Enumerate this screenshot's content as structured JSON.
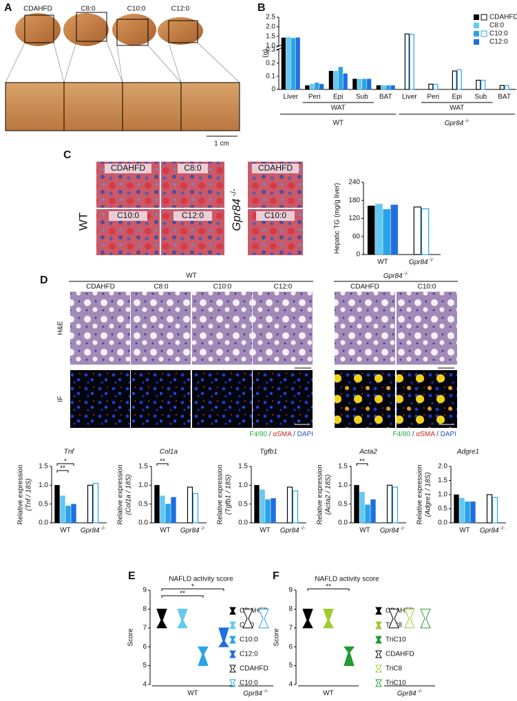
{
  "panel_labels": [
    "A",
    "B",
    "C",
    "D",
    "E",
    "F"
  ],
  "panel_a": {
    "labels": [
      "CDAHFD",
      "C8:0",
      "C10:0",
      "C12:0"
    ],
    "scale_bar": "1 cm"
  },
  "panel_c": {
    "labels": [
      "CDAHFD",
      "C8:0",
      "C10:0",
      "C12:0",
      "CDAHFD",
      "C10:0"
    ],
    "rows": [
      "WT",
      "Gpr84 -/-"
    ]
  },
  "panel_d": {
    "groups": [
      "WT",
      "Gpr84 -/-"
    ],
    "columns": [
      "CDAHFD",
      "C8:0",
      "C10:0",
      "C12:0",
      "CDAHFD",
      "C10:0"
    ],
    "rows": [
      "H&E",
      "IF"
    ],
    "stain_legend": [
      {
        "text": "F4/80",
        "color": "#22aa44"
      },
      {
        "text": " / ",
        "color": "#333333"
      },
      {
        "text": "αSMA",
        "color": "#cc2222"
      },
      {
        "text": " / ",
        "color": "#333333"
      },
      {
        "text": "DAPI",
        "color": "#2255cc"
      }
    ]
  },
  "chart_data": [
    {
      "type": "bar",
      "ylabel": "(g)",
      "legend": "top-right",
      "categories": [
        "Liver",
        "Peri",
        "Epi",
        "Sub",
        "BAT",
        "Liver",
        "Peri",
        "Epi",
        "Sub",
        "BAT"
      ],
      "subgroup_labels": [
        "WAT",
        "WAT"
      ],
      "group_labels": [
        "WT",
        "Gpr84 -/-"
      ],
      "ylim": [
        0,
        2.5
      ],
      "ybreak": [
        0.3,
        1.0
      ],
      "yticks": [
        0,
        0.1,
        0.2,
        0.3,
        {
          "value": 1,
          "label": "1.0"
        },
        1.5,
        {
          "value": 2,
          "label": "2.0"
        },
        2.5
      ],
      "series": [
        {
          "name": "CDAHFD",
          "color": "#000000",
          "values": [
            1.42,
            0.03,
            0.14,
            0.08,
            0.03,
            null,
            null,
            null,
            null,
            null
          ]
        },
        {
          "name": "C8:0",
          "color": "#63c8f2",
          "values": [
            1.45,
            0.04,
            0.14,
            0.08,
            0.03,
            null,
            null,
            null,
            null,
            null
          ]
        },
        {
          "name": "C10:0",
          "color": "#29a3e6",
          "values": [
            1.4,
            0.05,
            0.17,
            0.08,
            0.03,
            null,
            null,
            null,
            null,
            null
          ]
        },
        {
          "name": "C12:0",
          "color": "#1f6fe0",
          "values": [
            1.43,
            0.04,
            0.12,
            0.08,
            0.03,
            null,
            null,
            null,
            null,
            null
          ]
        },
        {
          "color": "#000000",
          "open": true,
          "values": [
            null,
            null,
            null,
            null,
            null,
            1.62,
            0.04,
            0.14,
            0.07,
            0.03
          ]
        },
        {
          "color": "#29a3e6",
          "open": true,
          "values": [
            null,
            null,
            null,
            null,
            null,
            1.6,
            0.04,
            0.15,
            0.07,
            0.03
          ]
        }
      ]
    },
    {
      "type": "bar",
      "ylabel": "Hepatic TG (mg/g liver)",
      "categories": [
        "WT",
        "Gpr84 -/-"
      ],
      "ylim": [
        0,
        240
      ],
      "yticks": [
        0,
        60,
        120,
        180,
        240
      ],
      "series": [
        {
          "color": "#000000",
          "values": [
            162,
            null
          ]
        },
        {
          "color": "#63c8f2",
          "values": [
            168,
            null
          ]
        },
        {
          "color": "#29a3e6",
          "values": [
            150,
            null
          ]
        },
        {
          "color": "#1f6fe0",
          "values": [
            165,
            null
          ]
        },
        {
          "color": "#000000",
          "open": true,
          "values": [
            null,
            158
          ]
        },
        {
          "color": "#29a3e6",
          "open": true,
          "values": [
            null,
            152
          ]
        }
      ]
    },
    {
      "type": "bar",
      "title": "Tnf",
      "ylabel": "Relative expression",
      "ylabel2": "(Tnf / 18S)",
      "categories": [
        "WT",
        "Gpr84 -/-"
      ],
      "ylim": [
        0,
        1.5
      ],
      "yticks": [
        {
          "value": 0,
          "label": "0.0"
        },
        0.5,
        {
          "value": 1,
          "label": "1.0"
        },
        1.5
      ],
      "annotations": [
        "*",
        "**"
      ],
      "series": [
        {
          "color": "#000000",
          "values": [
            1.0,
            null
          ]
        },
        {
          "color": "#63c8f2",
          "values": [
            0.72,
            null
          ]
        },
        {
          "color": "#29a3e6",
          "values": [
            0.45,
            null
          ]
        },
        {
          "color": "#1f6fe0",
          "values": [
            0.5,
            null
          ]
        },
        {
          "color": "#000000",
          "open": true,
          "values": [
            null,
            1.0
          ]
        },
        {
          "color": "#29a3e6",
          "open": true,
          "values": [
            null,
            1.05
          ]
        }
      ]
    },
    {
      "type": "bar",
      "title": "Col1a",
      "ylabel": "Relative expression",
      "ylabel2": "(Col1a / 18S)",
      "categories": [
        "WT",
        "Gpr84 -/-"
      ],
      "ylim": [
        0,
        1.5
      ],
      "yticks": [
        {
          "value": 0,
          "label": "0.0"
        },
        0.5,
        {
          "value": 1,
          "label": "1.0"
        },
        1.5
      ],
      "annotations": [
        "**"
      ],
      "series": [
        {
          "color": "#000000",
          "values": [
            1.0,
            null
          ]
        },
        {
          "color": "#63c8f2",
          "values": [
            0.72,
            null
          ]
        },
        {
          "color": "#29a3e6",
          "values": [
            0.5,
            null
          ]
        },
        {
          "color": "#1f6fe0",
          "values": [
            0.68,
            null
          ]
        },
        {
          "color": "#000000",
          "open": true,
          "values": [
            null,
            0.95
          ]
        },
        {
          "color": "#29a3e6",
          "open": true,
          "values": [
            null,
            0.78
          ]
        }
      ]
    },
    {
      "type": "bar",
      "title": "Tgfb1",
      "ylabel": "Relative expression",
      "ylabel2": "(Tgfb1 / 18S)",
      "categories": [
        "WT",
        "Gpr84 -/-"
      ],
      "ylim": [
        0,
        1.5
      ],
      "yticks": [
        {
          "value": 0,
          "label": "0.0"
        },
        0.5,
        {
          "value": 1,
          "label": "1.0"
        },
        1.5
      ],
      "series": [
        {
          "color": "#000000",
          "values": [
            1.0,
            null
          ]
        },
        {
          "color": "#63c8f2",
          "values": [
            0.88,
            null
          ]
        },
        {
          "color": "#29a3e6",
          "values": [
            0.62,
            null
          ]
        },
        {
          "color": "#1f6fe0",
          "values": [
            0.65,
            null
          ]
        },
        {
          "color": "#000000",
          "open": true,
          "values": [
            null,
            0.95
          ]
        },
        {
          "color": "#29a3e6",
          "open": true,
          "values": [
            null,
            0.85
          ]
        }
      ]
    },
    {
      "type": "bar",
      "title": "Acta2",
      "ylabel": "Relative expression",
      "ylabel2": "(Acta2 / 18S)",
      "categories": [
        "WT",
        "Gpr84 -/-"
      ],
      "ylim": [
        0,
        1.5
      ],
      "yticks": [
        {
          "value": 0,
          "label": "0.0"
        },
        0.5,
        {
          "value": 1,
          "label": "1.0"
        },
        1.5
      ],
      "annotations": [
        "**"
      ],
      "series": [
        {
          "color": "#000000",
          "values": [
            1.0,
            null
          ]
        },
        {
          "color": "#63c8f2",
          "values": [
            0.82,
            null
          ]
        },
        {
          "color": "#29a3e6",
          "values": [
            0.48,
            null
          ]
        },
        {
          "color": "#1f6fe0",
          "values": [
            0.62,
            null
          ]
        },
        {
          "color": "#000000",
          "open": true,
          "values": [
            null,
            1.0
          ]
        },
        {
          "color": "#29a3e6",
          "open": true,
          "values": [
            null,
            0.95
          ]
        }
      ]
    },
    {
      "type": "bar",
      "title": "Adgre1",
      "ylabel": "Relative expression",
      "ylabel2": "(Adgre1 / 18S)",
      "categories": [
        "WT",
        "Gpr84 -/-"
      ],
      "ylim": [
        0,
        2
      ],
      "yticks": [
        {
          "value": 0,
          "label": "0.0"
        },
        0.5,
        {
          "value": 1,
          "label": "1.0"
        },
        1.5,
        {
          "value": 2,
          "label": "2.0"
        }
      ],
      "series": [
        {
          "color": "#000000",
          "values": [
            1.0,
            null
          ]
        },
        {
          "color": "#63c8f2",
          "values": [
            0.88,
            null
          ]
        },
        {
          "color": "#29a3e6",
          "values": [
            0.75,
            null
          ]
        },
        {
          "color": "#1f6fe0",
          "values": [
            0.75,
            null
          ]
        },
        {
          "color": "#000000",
          "open": true,
          "values": [
            null,
            1.0
          ]
        },
        {
          "color": "#29a3e6",
          "open": true,
          "values": [
            null,
            0.9
          ]
        }
      ]
    },
    {
      "type": "violin",
      "title": "NAFLD activity score",
      "ylabel": "Score",
      "categories": [
        "WT",
        "Gpr84 -/-"
      ],
      "ylim": [
        4,
        9
      ],
      "yticks": [
        4,
        5,
        6,
        7,
        8,
        9
      ],
      "annotations": [
        "*",
        "**"
      ],
      "series": [
        {
          "name": "CDAHFD",
          "color": "#000000",
          "values": [
            [
              7,
              7.4,
              8
            ],
            null
          ]
        },
        {
          "name": "C8:0",
          "color": "#63c8f2",
          "values": [
            [
              7,
              7.4,
              8
            ],
            null
          ]
        },
        {
          "name": "C10:0",
          "color": "#29a3e6",
          "values": [
            [
              5,
              5.6,
              6
            ],
            null
          ]
        },
        {
          "name": "C12:0",
          "color": "#1f6fe0",
          "values": [
            [
              6,
              6.3,
              7
            ],
            null
          ]
        },
        {
          "name": "CDAHFD",
          "color": "#000000",
          "open": true,
          "values": [
            null,
            [
              7,
              7.5,
              8
            ]
          ]
        },
        {
          "name": "C10:0",
          "color": "#29a3e6",
          "open": true,
          "values": [
            null,
            [
              7,
              7.5,
              8
            ]
          ]
        }
      ]
    },
    {
      "type": "violin",
      "title": "NAFLD activity score",
      "ylabel": "Score",
      "categories": [
        "WT",
        "Gpr84 -/-"
      ],
      "ylim": [
        4,
        9
      ],
      "yticks": [
        4,
        5,
        6,
        7,
        8,
        9
      ],
      "annotations": [
        "**"
      ],
      "series": [
        {
          "name": "CDAHFD",
          "color": "#000000",
          "values": [
            [
              7,
              7.4,
              8
            ],
            null
          ]
        },
        {
          "name": "TriC8",
          "color": "#9ccc2e",
          "values": [
            [
              7,
              7.4,
              8
            ],
            null
          ]
        },
        {
          "name": "TriC10",
          "color": "#229933",
          "values": [
            [
              5,
              5.7,
              6
            ],
            null
          ]
        },
        {
          "name": "CDAHFD",
          "color": "#000000",
          "open": true,
          "values": [
            null,
            [
              7,
              7.5,
              8
            ]
          ]
        },
        {
          "name": "TriC8",
          "color": "#9ccc2e",
          "open": true,
          "values": [
            null,
            [
              7,
              7.5,
              8
            ]
          ]
        },
        {
          "name": "TriC10",
          "color": "#229933",
          "open": true,
          "values": [
            null,
            [
              7,
              7.5,
              8
            ]
          ]
        }
      ]
    }
  ]
}
